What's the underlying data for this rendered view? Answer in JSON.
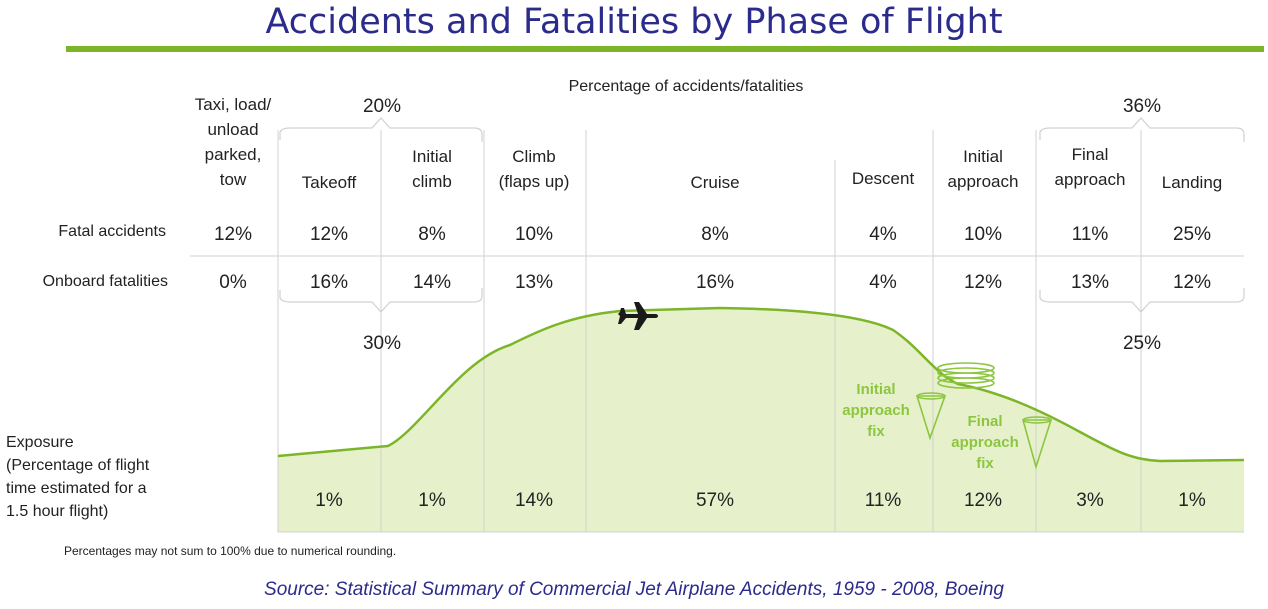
{
  "title": "Accidents and Fatalities by Phase of Flight",
  "source": "Source: Statistical Summary of Commercial Jet Airplane Accidents, 1959 - 2008, Boeing",
  "chart_data": {
    "type": "area",
    "title": "Accidents and Fatalities by Phase of Flight",
    "subtitle": "Percentage of accidents/fatalities",
    "row_labels": {
      "fatal": "Fatal accidents",
      "onboard": "Onboard fatalities",
      "exposure": [
        "Exposure",
        "(Percentage of flight",
        "time estimated for a",
        "1.5 hour flight)"
      ]
    },
    "phases": [
      {
        "label": [
          "Taxi, load/",
          "unload",
          "parked,",
          "tow"
        ],
        "fatal": "12%",
        "onboard": "0%",
        "exposure": ""
      },
      {
        "label": [
          "Takeoff"
        ],
        "fatal": "12%",
        "onboard": "16%",
        "exposure": "1%"
      },
      {
        "label": [
          "Initial",
          "climb"
        ],
        "fatal": "8%",
        "onboard": "14%",
        "exposure": "1%"
      },
      {
        "label": [
          "Climb",
          "(flaps up)"
        ],
        "fatal": "10%",
        "onboard": "13%",
        "exposure": "14%"
      },
      {
        "label": [
          "Cruise"
        ],
        "fatal": "8%",
        "onboard": "16%",
        "exposure": "57%"
      },
      {
        "label": [
          "Descent"
        ],
        "fatal": "4%",
        "onboard": "4%",
        "exposure": "11%"
      },
      {
        "label": [
          "Initial",
          "approach"
        ],
        "fatal": "10%",
        "onboard": "12%",
        "exposure": "12%"
      },
      {
        "label": [
          "Final",
          "approach"
        ],
        "fatal": "11%",
        "onboard": "13%",
        "exposure": "3%"
      },
      {
        "label": [
          "Landing"
        ],
        "fatal": "25%",
        "onboard": "12%",
        "exposure": "1%"
      }
    ],
    "groups": [
      {
        "phases": [
          "Takeoff",
          "Initial climb"
        ],
        "fatal": "20%",
        "onboard": "30%"
      },
      {
        "phases": [
          "Final approach",
          "Landing"
        ],
        "fatal": "36%",
        "onboard": "25%"
      }
    ],
    "annotations": [
      [
        "Initial",
        "approach",
        "fix"
      ],
      [
        "Final",
        "approach",
        "fix"
      ]
    ],
    "footnote": "Percentages may not sum to 100% due to numerical rounding.",
    "colors": {
      "curve": "#7cb528",
      "fill": "#e6f1cc",
      "divider": "#cfd3cc",
      "annotation": "#8cc63f"
    }
  }
}
